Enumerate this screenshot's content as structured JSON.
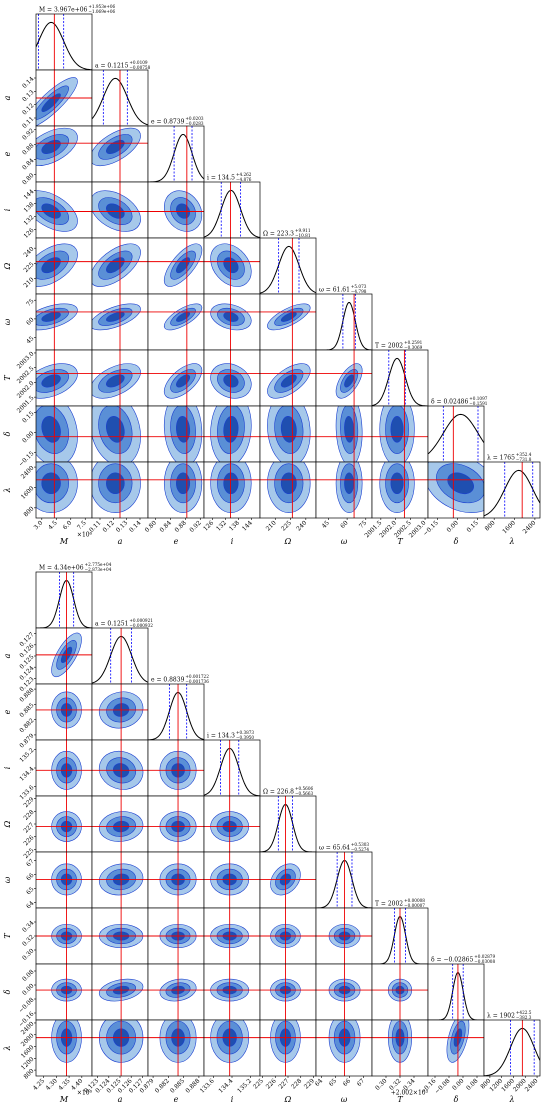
{
  "chart_data": [
    {
      "type": "corner",
      "params": [
        {
          "label": "M",
          "title": {
            "text": "M = 3.967e+06",
            "plus": "+1.953e+06",
            "minus": "−1.069e+06"
          },
          "lim": [
            2.4,
            8.2
          ],
          "ticks": [
            {
              "value": 3,
              "label": "3.0"
            },
            4.5,
            {
              "value": 6,
              "label": "6.0"
            },
            7.5
          ],
          "offset": "×10⁶",
          "mean": 3.967,
          "sigma": 1.3,
          "truth": 4.3,
          "rho": []
        },
        {
          "label": "a",
          "title": {
            "text": "a = 0.1215",
            "plus": "+0.0109",
            "minus": "−0.00758"
          },
          "lim": [
            0.104,
            0.146
          ],
          "ticks": [
            0.11,
            0.12,
            0.13,
            0.14
          ],
          "mean": 0.1215,
          "sigma": 0.009,
          "truth": 0.125,
          "rho": [
            0.85
          ]
        },
        {
          "label": "e",
          "title": {
            "text": "e = 0.8739",
            "plus": "+0.0203",
            "minus": "−0.0283"
          },
          "lim": [
            0.78,
            0.93
          ],
          "ticks": [
            {
              "value": 0.8,
              "label": "0.80"
            },
            0.84,
            0.88,
            0.92
          ],
          "mean": 0.8739,
          "sigma": 0.024,
          "truth": 0.884,
          "rho": [
            0.5,
            0.6
          ]
        },
        {
          "label": "i",
          "title": {
            "text": "i = 134.5",
            "plus": "+4.262",
            "minus": "−4.876"
          },
          "lim": [
            122,
            148
          ],
          "ticks": [
            126,
            132,
            138,
            144
          ],
          "mean": 134.5,
          "sigma": 4.5,
          "truth": 134.3,
          "rho": [
            -0.5,
            -0.4,
            -0.2
          ]
        },
        {
          "label": "Ω",
          "title": {
            "text": "Ω = 223.3",
            "plus": "+9.911",
            "minus": "−10.81"
          },
          "lim": [
            195,
            250
          ],
          "ticks": [
            210,
            225,
            240
          ],
          "mean": 223.3,
          "sigma": 10,
          "truth": 226.8,
          "rho": [
            0.5,
            0.6,
            0.7,
            -0.3
          ]
        },
        {
          "label": "ω",
          "title": {
            "text": "ω = 61.61",
            "plus": "+5.073",
            "minus": "−4.798"
          },
          "lim": [
            35,
            80
          ],
          "ticks": [
            45,
            60,
            75
          ],
          "mean": 61.61,
          "sigma": 5,
          "truth": 65.6,
          "rho": [
            0.5,
            0.6,
            0.7,
            -0.3,
            0.7
          ]
        },
        {
          "label": "T",
          "title": {
            "text": "T = 2002",
            "plus": "+0.2591",
            "minus": "−0.3069"
          },
          "lim": [
            2001.2,
            2003.1
          ],
          "ticks": [
            2001.5,
            {
              "value": 2002,
              "label": "2002.0"
            },
            2002.5,
            {
              "value": 2003,
              "label": "2003.0"
            }
          ],
          "mean": 2002.05,
          "sigma": 0.28,
          "truth": 2002.3,
          "rho": [
            0.4,
            0.5,
            0.6,
            -0.2,
            0.6,
            0.6
          ]
        },
        {
          "label": "δ",
          "title": {
            "text": "δ = 0.02486",
            "plus": "+0.1097",
            "minus": "−0.1591"
          },
          "lim": [
            -0.22,
            0.2
          ],
          "ticks": [
            {
              "value": -0.15,
              "label": "−0.15"
            },
            {
              "value": 0,
              "label": "0.00"
            },
            0.15
          ],
          "mean": 0.025,
          "sigma": 0.13,
          "truth": -0.03,
          "rho": [
            -0.2,
            -0.2,
            -0.1,
            0.1,
            -0.1,
            -0.1,
            0
          ]
        },
        {
          "label": "λ",
          "title": {
            "text": "λ = 1765",
            "plus": "+352.4",
            "minus": "−731.8"
          },
          "lim": [
            400,
            2600
          ],
          "ticks": [
            800,
            1600,
            2400
          ],
          "mean": 1765,
          "sigma": 550,
          "truth": 1900,
          "rho": [
            0,
            0,
            0,
            0,
            0,
            0,
            0,
            -0.3
          ]
        }
      ]
    },
    {
      "type": "corner",
      "params": [
        {
          "label": "M",
          "title": {
            "text": "M = 4.34e+06",
            "plus": "+2.775e+04",
            "minus": "−2.873e+04"
          },
          "lim": [
            4.22,
            4.44
          ],
          "ticks": [
            4.25,
            {
              "value": 4.3,
              "label": "4.30"
            },
            4.35,
            {
              "value": 4.4,
              "label": "4.40"
            }
          ],
          "offset": "×10⁶",
          "mean": 4.34,
          "sigma": 0.028,
          "truth": 4.34,
          "rho": []
        },
        {
          "label": "a",
          "title": {
            "text": "a = 0.1251",
            "plus": "+0.000921",
            "minus": "−0.000932"
          },
          "lim": [
            0.1225,
            0.1275
          ],
          "ticks": [
            0.123,
            0.124,
            0.125,
            0.126,
            0.127
          ],
          "mean": 0.1251,
          "sigma": 0.00093,
          "truth": 0.1251,
          "rho": [
            0.7
          ]
        },
        {
          "label": "e",
          "title": {
            "text": "e = 0.8839",
            "plus": "+0.001722",
            "minus": "−0.001736"
          },
          "lim": [
            0.878,
            0.889
          ],
          "ticks": [
            0.879,
            0.882,
            0.885,
            0.888
          ],
          "mean": 0.8839,
          "sigma": 0.0017,
          "truth": 0.8839,
          "rho": [
            0,
            0.1
          ]
        },
        {
          "label": "i",
          "title": {
            "text": "i = 134.3",
            "plus": "+0.3873",
            "minus": "−0.3950"
          },
          "lim": [
            133.2,
            135.6
          ],
          "ticks": [
            133.6,
            134.4,
            135.2
          ],
          "mean": 134.3,
          "sigma": 0.39,
          "truth": 134.3,
          "rho": [
            0,
            -0.1,
            0
          ]
        },
        {
          "label": "Ω",
          "title": {
            "text": "Ω = 226.8",
            "plus": "+0.5606",
            "minus": "−0.5663"
          },
          "lim": [
            224.8,
            229.2
          ],
          "ticks": [
            225,
            226,
            227,
            228,
            229
          ],
          "mean": 226.8,
          "sigma": 0.56,
          "truth": 226.8,
          "rho": [
            0,
            0.1,
            0,
            0
          ]
        },
        {
          "label": "ω",
          "title": {
            "text": "ω = 65.64",
            "plus": "+0.5303",
            "minus": "−0.5274"
          },
          "lim": [
            63.6,
            67.6
          ],
          "ticks": [
            64,
            65,
            66,
            67
          ],
          "mean": 65.64,
          "sigma": 0.53,
          "truth": 65.64,
          "rho": [
            0,
            0.1,
            0,
            0,
            0.3
          ]
        },
        {
          "label": "T",
          "title": {
            "text": "T = 2002",
            "plus": "+0.00008",
            "minus": "−0.00007"
          },
          "lim": [
            0.28,
            0.36
          ],
          "ticks": [
            {
              "value": 0.3,
              "label": "0.30"
            },
            0.32,
            0.34
          ],
          "offset": "+2.002×10³",
          "mean": 0.32,
          "sigma": 0.008,
          "truth": 0.32,
          "rho": [
            0,
            0,
            0,
            0,
            0,
            0
          ]
        },
        {
          "label": "δ",
          "title": {
            "text": "δ = −0.02865",
            "plus": "+0.02879",
            "minus": "−0.03008"
          },
          "lim": [
            -0.2,
            0.12
          ],
          "ticks": [
            {
              "value": -0.16,
              "label": "−0.16"
            },
            {
              "value": -0.08,
              "label": "−0.08"
            },
            {
              "value": 0,
              "label": "0.00"
            },
            0.08
          ],
          "mean": -0.029,
          "sigma": 0.03,
          "truth": -0.029,
          "rho": [
            0,
            0.3,
            0.2,
            0,
            0,
            0,
            0
          ]
        },
        {
          "label": "λ",
          "title": {
            "text": "λ = 1902",
            "plus": "+422.5",
            "minus": "−382.3"
          },
          "lim": [
            600,
            2500
          ],
          "ticks": [
            800,
            1200,
            1600,
            2000,
            2400
          ],
          "mean": 1902,
          "sigma": 400,
          "truth": 1902,
          "rho": [
            0,
            0,
            0,
            0,
            0,
            0,
            0,
            0.5
          ]
        }
      ]
    }
  ]
}
